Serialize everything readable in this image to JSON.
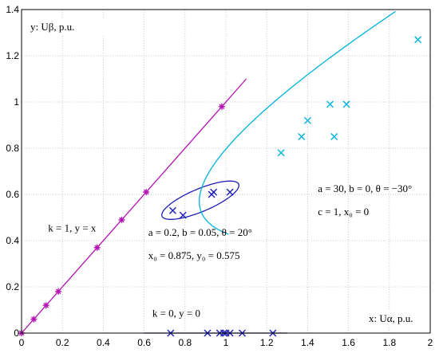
{
  "chart_data": {
    "type": "scatter",
    "title": "",
    "xlabel": "x: Uα, p.u.",
    "ylabel": "y: Uβ, p.u.",
    "xlim": [
      0,
      2
    ],
    "ylim": [
      0,
      1.4
    ],
    "grid": true,
    "x_ticks": [
      "0",
      "0.2",
      "0.4",
      "0.6",
      "0.8",
      "1",
      "1.2",
      "1.4",
      "1.6",
      "1.8",
      "2"
    ],
    "y_ticks": [
      "0",
      "0.2",
      "0.4",
      "0.6",
      "0.8",
      "1",
      "1.2",
      "1.4"
    ],
    "colors": {
      "magenta": "#b414b4",
      "cyan": "#00b4dc",
      "blue": "#1e1eb4",
      "grid": "#c8c8c8"
    },
    "series": [
      {
        "marker": "star",
        "color": "#b414b4",
        "x": [
          0,
          0.06,
          0.12,
          0.18,
          0.37,
          0.49,
          0.61,
          0.98
        ],
        "y": [
          0,
          0.06,
          0.12,
          0.18,
          0.37,
          0.49,
          0.61,
          0.98
        ]
      },
      {
        "marker": "x",
        "color": "#1e1eb4",
        "x": [
          0.73,
          0.91,
          0.97,
          0.99,
          1.0,
          1.02,
          1.08,
          1.23
        ],
        "y": [
          0,
          0,
          0,
          0,
          0,
          0,
          0,
          0
        ]
      },
      {
        "marker": "x",
        "color": "#1e1eb4",
        "x": [
          0.74,
          0.79,
          0.93,
          0.94,
          1.02
        ],
        "y": [
          0.53,
          0.51,
          0.6,
          0.61,
          0.61
        ]
      },
      {
        "marker": "x",
        "color": "#00b4dc",
        "x": [
          1.27,
          1.37,
          1.4,
          1.51,
          1.53,
          1.59,
          1.94
        ],
        "y": [
          0.78,
          0.85,
          0.92,
          0.99,
          0.85,
          0.99,
          1.27
        ]
      }
    ],
    "curves": [
      {
        "kind": "line",
        "color": "#b414b4",
        "from": [
          0,
          0
        ],
        "to": [
          1.1,
          1.1
        ]
      },
      {
        "kind": "line",
        "color": "#1e1eb4",
        "from": [
          0.6,
          0
        ],
        "to": [
          1.3,
          0
        ]
      },
      {
        "kind": "ellipse",
        "color": "#1e1eb4",
        "a": 0.2,
        "b": 0.05,
        "theta_deg": 20,
        "x0": 0.875,
        "y0": 0.575
      },
      {
        "kind": "hyperbola",
        "color": "#00b4dc",
        "a": 30,
        "b": 0,
        "theta_deg": -30,
        "c": 1,
        "x0": 0
      }
    ],
    "annotations": [
      {
        "id": "a1",
        "text": "k = 1, y = x",
        "x": 0.13,
        "y": 0.44
      },
      {
        "id": "a2",
        "text": "k = 0, y = 0",
        "x": 0.64,
        "y": 0.07
      },
      {
        "id": "a3",
        "text": "a = 0.2, b = 0.05, θ = 20°",
        "x": 0.62,
        "y": 0.42
      },
      {
        "id": "a4",
        "text": "x₀ = 0.875, y₀ = 0.575",
        "x": 0.62,
        "y": 0.32
      },
      {
        "id": "a5",
        "text": "a = 30, b = 0, θ = −30°",
        "x": 1.45,
        "y": 0.61
      },
      {
        "id": "a6",
        "text": "c = 1, x₀ = 0",
        "x": 1.45,
        "y": 0.51
      }
    ]
  }
}
